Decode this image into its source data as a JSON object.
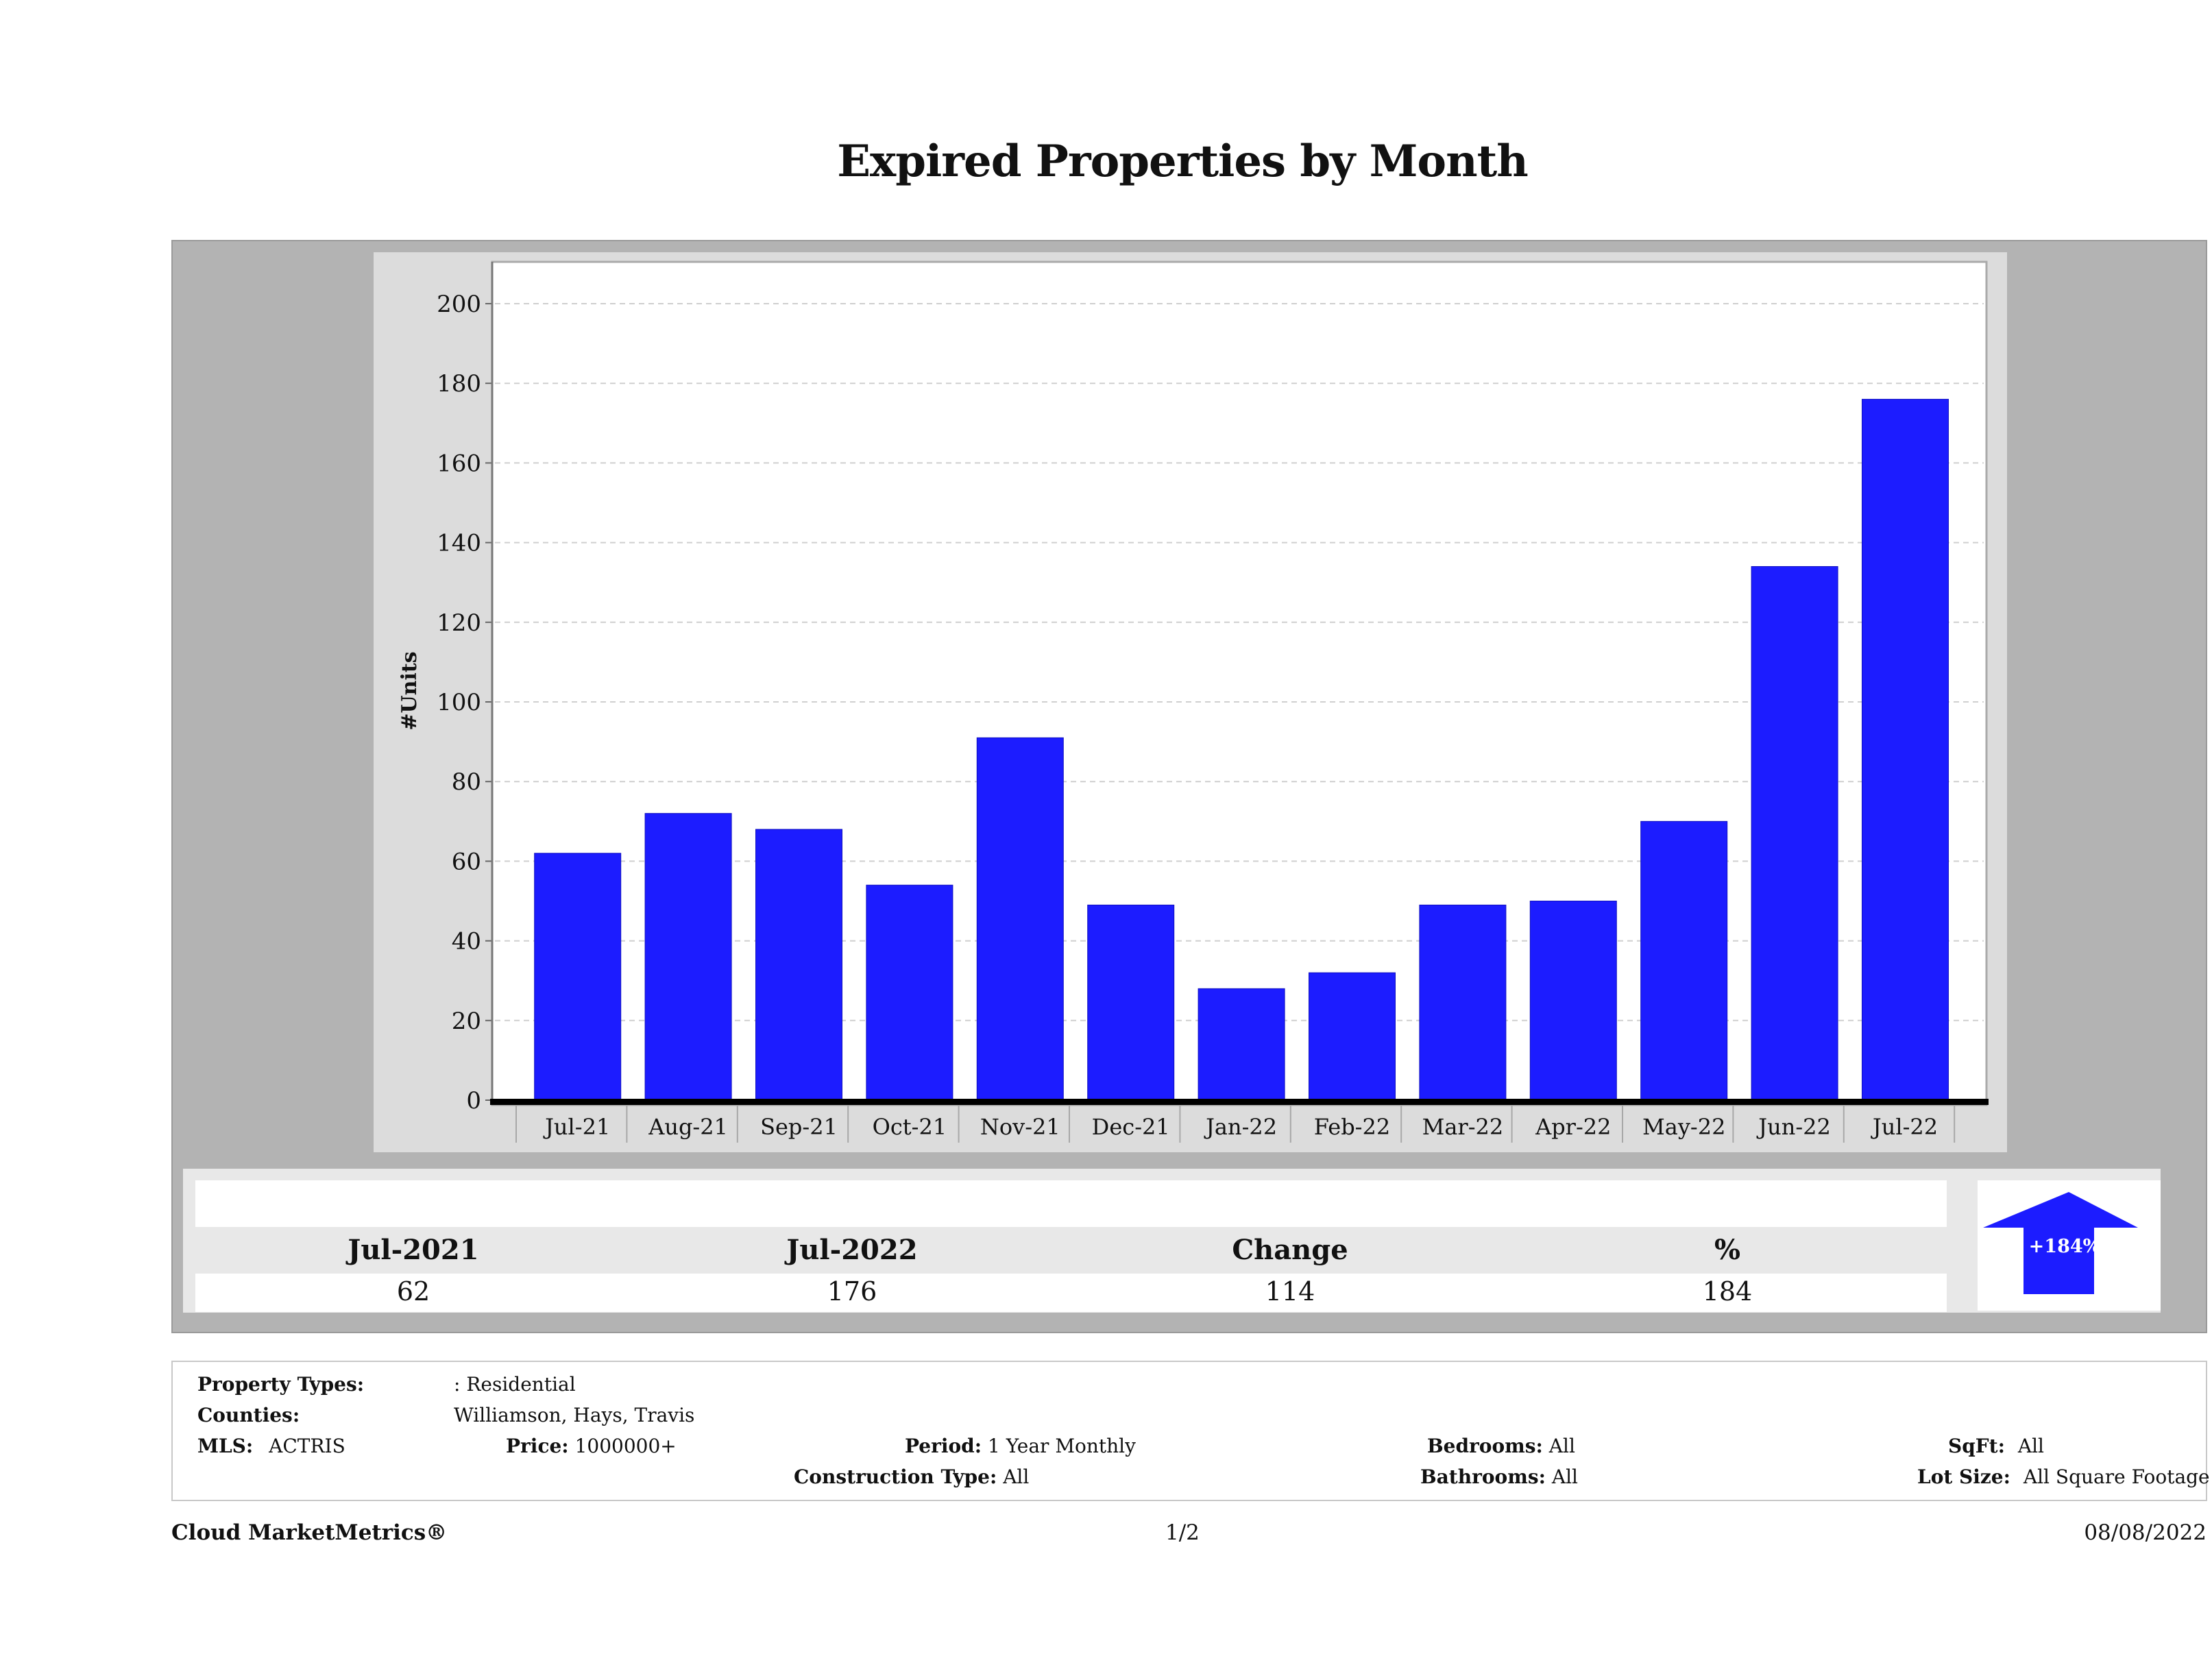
{
  "title": "Expired Properties by Month",
  "chart_data": {
    "type": "bar",
    "title": "Expired Properties by Month",
    "xlabel": "",
    "ylabel": "#Units",
    "categories": [
      "Jul-21",
      "Aug-21",
      "Sep-21",
      "Oct-21",
      "Nov-21",
      "Dec-21",
      "Jan-22",
      "Feb-22",
      "Mar-22",
      "Apr-22",
      "May-22",
      "Jun-22",
      "Jul-22"
    ],
    "values": [
      62,
      72,
      68,
      54,
      91,
      49,
      28,
      32,
      49,
      50,
      70,
      134,
      176
    ],
    "ylim": [
      0,
      210
    ],
    "yticks": [
      0,
      20,
      40,
      60,
      80,
      100,
      120,
      140,
      160,
      180,
      200
    ],
    "grid": true,
    "legend": "none",
    "bar_color": "#1c1cff"
  },
  "summary": {
    "headers": [
      "Jul-2021",
      "Jul-2022",
      "Change",
      "%"
    ],
    "values": [
      "62",
      "176",
      "114",
      "184"
    ],
    "badge": "+184%",
    "badge_icon": "arrow-up-icon",
    "badge_color": "#1c1cff"
  },
  "filters": {
    "property_types_label": "Property Types:",
    "property_types_value": ": Residential",
    "counties_label": "Counties:",
    "counties_value": "Williamson, Hays, Travis",
    "mls_label": "MLS:",
    "mls_value": "ACTRIS",
    "price_label": "Price:",
    "price_value": "1000000+",
    "period_label": "Period:",
    "period_value": "1 Year Monthly",
    "construction_label": "Construction Type:",
    "construction_value": "All",
    "bedrooms_label": "Bedrooms:",
    "bedrooms_value": "All",
    "bathrooms_label": "Bathrooms:",
    "bathrooms_value": "All",
    "sqft_label": "SqFt:",
    "sqft_value": "All",
    "lotsize_label": "Lot Size:",
    "lotsize_value": "All Square Footage"
  },
  "footer": {
    "brand": "Cloud MarketMetrics®",
    "page": "1/2",
    "date": "08/08/2022"
  }
}
